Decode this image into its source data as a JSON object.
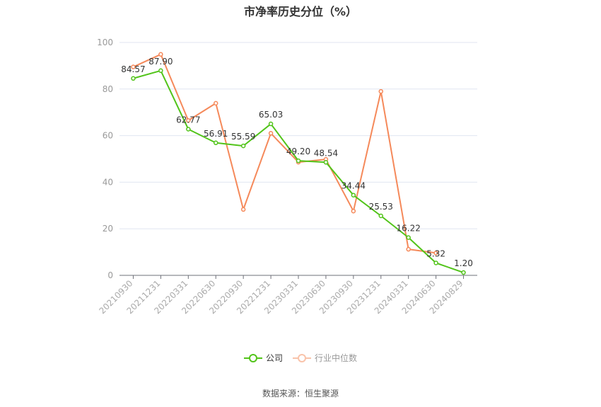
{
  "title": "市净率历史分位（%）",
  "source": "数据来源：恒生聚源",
  "legend": [
    {
      "label": "公司",
      "color": "#52c41a"
    },
    {
      "label": "行业中位数",
      "color": "#f5895a"
    }
  ],
  "chart_data": {
    "type": "line",
    "title": "市净率历史分位（%）",
    "xlabel": "",
    "ylabel": "",
    "ylim": [
      0,
      100
    ],
    "yticks": [
      0,
      20,
      40,
      60,
      80,
      100
    ],
    "grid": true,
    "legend_position": "bottom",
    "categories": [
      "20210930",
      "20211231",
      "20220331",
      "20220630",
      "20220930",
      "20221231",
      "20230331",
      "20230630",
      "20230930",
      "20231231",
      "20240331",
      "20240630",
      "20240829"
    ],
    "series": [
      {
        "name": "公司",
        "color": "#52c41a",
        "values": [
          84.57,
          87.9,
          62.77,
          56.91,
          55.59,
          65.03,
          49.2,
          48.54,
          34.44,
          25.53,
          16.22,
          5.32,
          1.2
        ],
        "labels_shown": true
      },
      {
        "name": "行业中位数",
        "color": "#f5895a",
        "values": [
          89.5,
          94.9,
          66.5,
          73.9,
          28.3,
          61.0,
          48.6,
          49.8,
          27.6,
          79.0,
          11.2,
          9.6,
          null
        ],
        "labels_shown": false
      }
    ]
  }
}
